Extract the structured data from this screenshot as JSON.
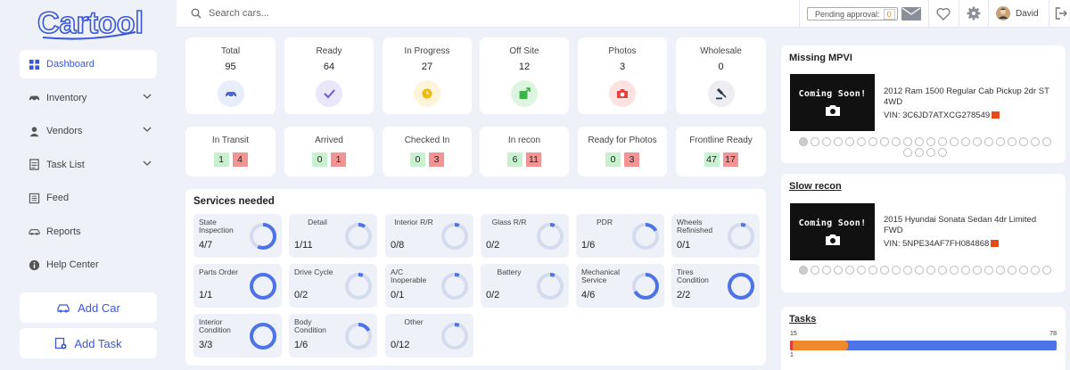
{
  "app": {
    "logo": "Cartool"
  },
  "sidebar": {
    "items": [
      {
        "label": "Dashboard",
        "icon": "dashboard-icon",
        "active": true,
        "chevron": false
      },
      {
        "label": "Inventory",
        "icon": "car-icon",
        "active": false,
        "chevron": true
      },
      {
        "label": "Vendors",
        "icon": "person-icon",
        "active": false,
        "chevron": true
      },
      {
        "label": "Task List",
        "icon": "list-icon",
        "active": false,
        "chevron": true
      },
      {
        "label": "Feed",
        "icon": "feed-icon",
        "active": false,
        "chevron": false
      },
      {
        "label": "Reports",
        "icon": "reports-icon",
        "active": false,
        "chevron": false
      },
      {
        "label": "Help Center",
        "icon": "info-icon",
        "active": false,
        "chevron": false
      }
    ],
    "add_car": "Add Car",
    "add_task": "Add Task"
  },
  "topbar": {
    "search_placeholder": "Search cars...",
    "pending_label": "Pending approval:",
    "pending_count": "0",
    "user_name": "David"
  },
  "stats": [
    {
      "label": "Total",
      "value": "95",
      "icon": "car-icon",
      "bg": "#e8edfb",
      "fg": "#4a68d8"
    },
    {
      "label": "Ready",
      "value": "64",
      "icon": "check-icon",
      "bg": "#eae6fb",
      "fg": "#6a5ad8"
    },
    {
      "label": "In Progress",
      "value": "27",
      "icon": "clock-icon",
      "bg": "#fdf4d9",
      "fg": "#f2b705"
    },
    {
      "label": "Off Site",
      "value": "12",
      "icon": "export-icon",
      "bg": "#def5e1",
      "fg": "#3bb54a"
    },
    {
      "label": "Photos",
      "value": "3",
      "icon": "camera-icon",
      "bg": "#fde2e2",
      "fg": "#e84343"
    },
    {
      "label": "Wholesale",
      "value": "0",
      "icon": "gavel-icon",
      "bg": "#eceef2",
      "fg": "#2b3550"
    }
  ],
  "transit": [
    {
      "label": "In Transit",
      "green": "1",
      "red": "4"
    },
    {
      "label": "Arrived",
      "green": "0",
      "red": "1"
    },
    {
      "label": "Checked In",
      "green": "0",
      "red": "3"
    },
    {
      "label": "In recon",
      "green": "6",
      "red": "11"
    },
    {
      "label": "Ready for Photos",
      "green": "0",
      "red": "3"
    },
    {
      "label": "Frontline Ready",
      "green": "47",
      "red": "17"
    }
  ],
  "services": {
    "title": "Services needed",
    "items": [
      {
        "name": "State Inspection",
        "count": "4/7",
        "fraction": 0.57,
        "align": "left"
      },
      {
        "name": "Detail",
        "count": "1/11",
        "fraction": 0.09,
        "align": "center"
      },
      {
        "name": "Interior R/R",
        "count": "0/8",
        "fraction": 0.0,
        "align": "center"
      },
      {
        "name": "Glass R/R",
        "count": "0/2",
        "fraction": 0.0,
        "align": "center"
      },
      {
        "name": "PDR",
        "count": "1/6",
        "fraction": 0.17,
        "align": "center"
      },
      {
        "name": "Wheels Refinished",
        "count": "0/1",
        "fraction": 0.0,
        "align": "left"
      },
      {
        "name": "Parts Order",
        "count": "1/1",
        "fraction": 1.0,
        "align": "left"
      },
      {
        "name": "Drive Cycle",
        "count": "0/2",
        "fraction": 0.0,
        "align": "left"
      },
      {
        "name": "A/C Inoperable",
        "count": "0/1",
        "fraction": 0.0,
        "align": "left"
      },
      {
        "name": "Battery",
        "count": "0/2",
        "fraction": 0.0,
        "align": "center"
      },
      {
        "name": "Mechanical Service",
        "count": "4/6",
        "fraction": 0.67,
        "align": "left"
      },
      {
        "name": "Tires Condition",
        "count": "2/2",
        "fraction": 1.0,
        "align": "left"
      },
      {
        "name": "Interior Condition",
        "count": "3/3",
        "fraction": 1.0,
        "align": "left"
      },
      {
        "name": "Body Condition",
        "count": "1/6",
        "fraction": 0.17,
        "align": "left"
      },
      {
        "name": "Other",
        "count": "0/12",
        "fraction": 0.0,
        "align": "center"
      }
    ]
  },
  "missing_mpvi": {
    "title": "Missing MPVI",
    "placeholder_text": "Coming Soon!",
    "car": "2012 Ram 1500 Regular Cab Pickup 2dr ST 4WD",
    "vin_label": "VIN:",
    "vin": "3C6JD7ATXCG278549",
    "dot_count": 26
  },
  "slow_recon": {
    "title": "Slow recon",
    "placeholder_text": "Coming Soon!",
    "car": "2015 Hyundai Sonata Sedan 4dr Limited FWD",
    "vin_label": "VIN:",
    "vin": "5NPE34AF7FH084868",
    "dot_count": 22
  },
  "tasks": {
    "title": "Tasks",
    "red": 1,
    "orange": 15,
    "blue": 78,
    "colors": {
      "red": "#e53935",
      "orange": "#f0892c",
      "blue": "#4e73e8"
    }
  },
  "colors": {
    "accent": "#3b57d9",
    "green_badge": "#c9f1cf",
    "red_badge": "#f29494",
    "ring": "#4e73e8",
    "ring_bg": "#d3dbef"
  }
}
